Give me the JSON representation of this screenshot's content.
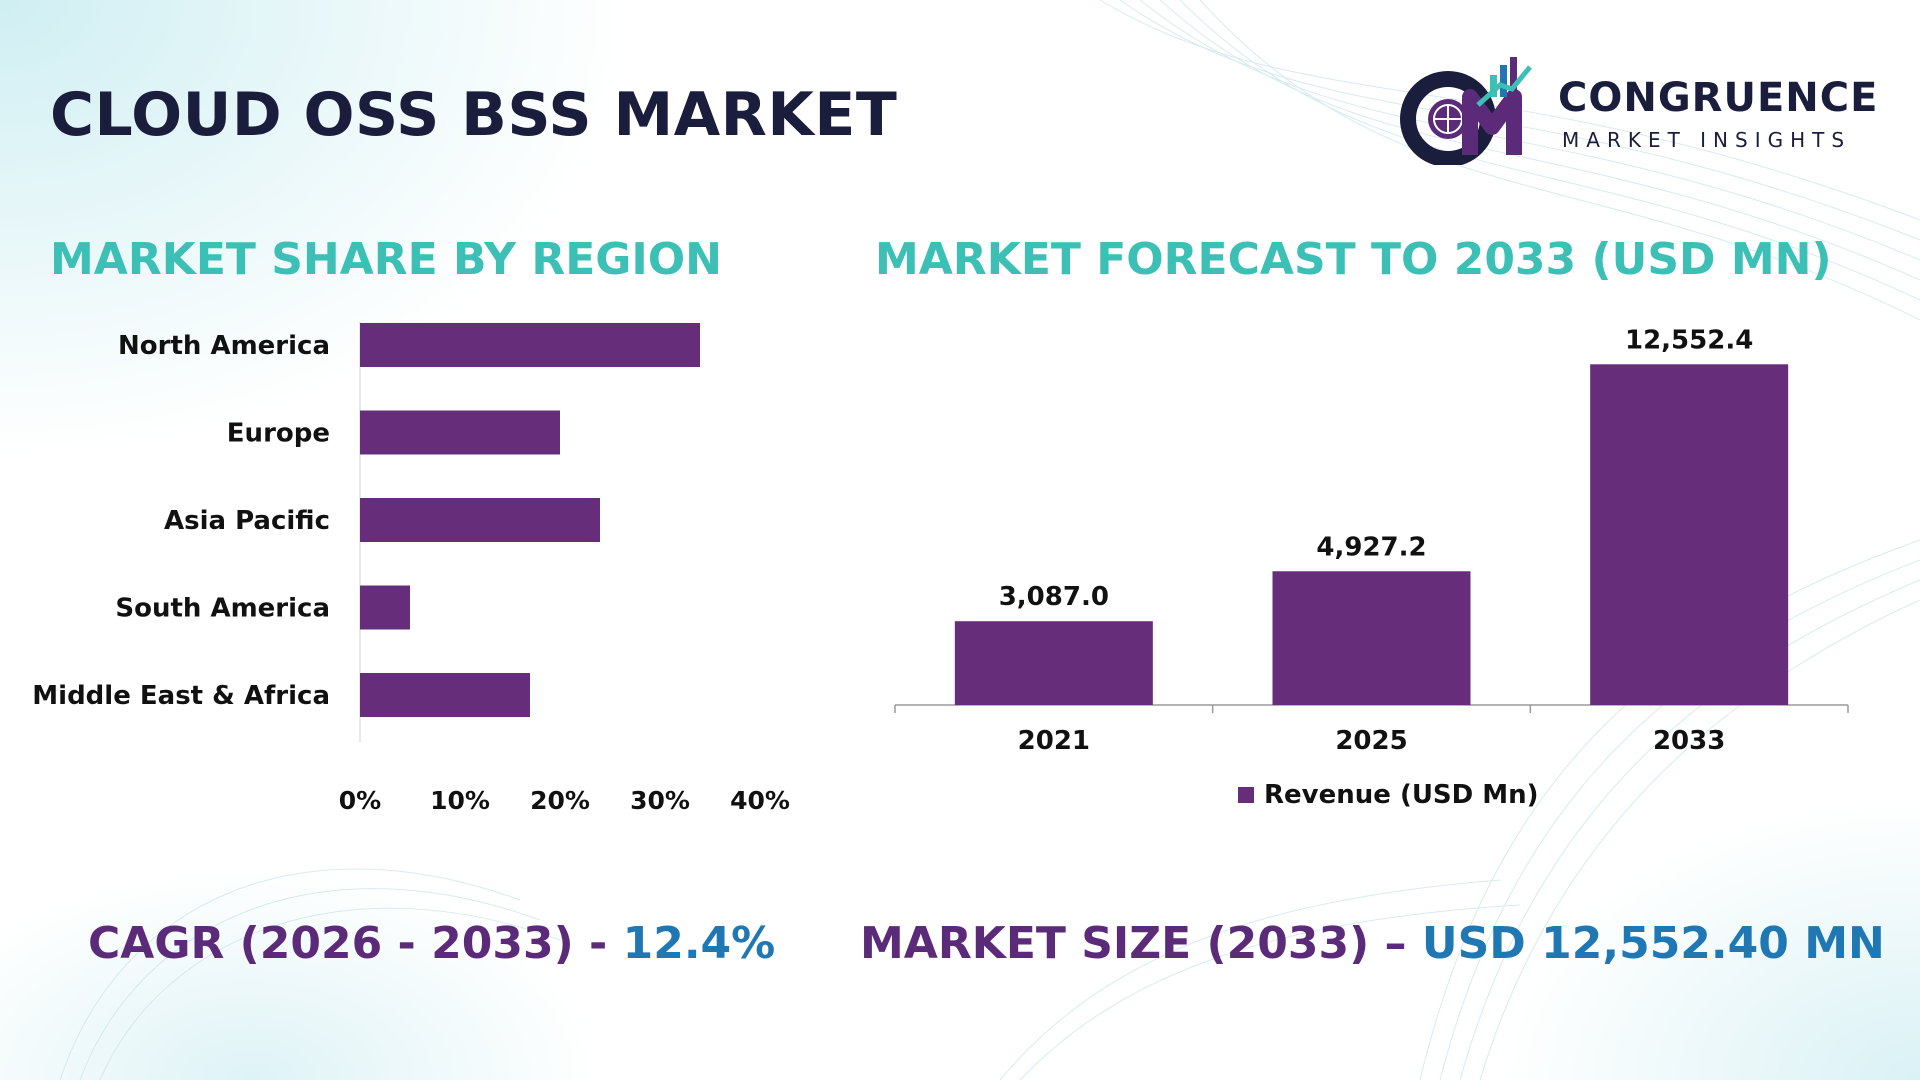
{
  "title": "CLOUD OSS BSS MARKET",
  "logo": {
    "name": "CONGRUENCE",
    "tagline": "MARKET INSIGHTS"
  },
  "region_section": {
    "title": "MARKET SHARE BY REGION"
  },
  "forecast_section": {
    "title": "MARKET FORECAST TO 2033 (USD MN)",
    "legend": "Revenue (USD Mn)"
  },
  "stats": {
    "cagr_label": "CAGR (2026 - 2033) -",
    "cagr_value": "12.4%",
    "size_label": "MARKET SIZE (2033) –",
    "size_value": "USD 12,552.40 MN"
  },
  "colors": {
    "bar": "#652d7a",
    "accent_teal": "#3cc0b5",
    "stat_purple": "#5b2b7a",
    "stat_blue": "#1f78b4"
  },
  "chart_data": [
    {
      "type": "bar",
      "orientation": "horizontal",
      "categories": [
        "North America",
        "Europe",
        "Asia Pacific",
        "South America",
        "Middle East & Africa"
      ],
      "values": [
        34,
        20,
        24,
        5,
        17
      ],
      "xticks": [
        "0%",
        "10%",
        "20%",
        "30%",
        "40%"
      ],
      "xlim": [
        0,
        40
      ],
      "grid": false
    },
    {
      "type": "bar",
      "categories": [
        "2021",
        "2025",
        "2033"
      ],
      "series": [
        {
          "name": "Revenue (USD Mn)",
          "values": [
            3087.0,
            4927.2,
            12552.4
          ]
        }
      ],
      "data_labels": [
        "3,087.0",
        "4,927.2",
        "12,552.4"
      ],
      "ylim": [
        0,
        14000
      ],
      "legend": "bottom",
      "grid": false
    }
  ]
}
